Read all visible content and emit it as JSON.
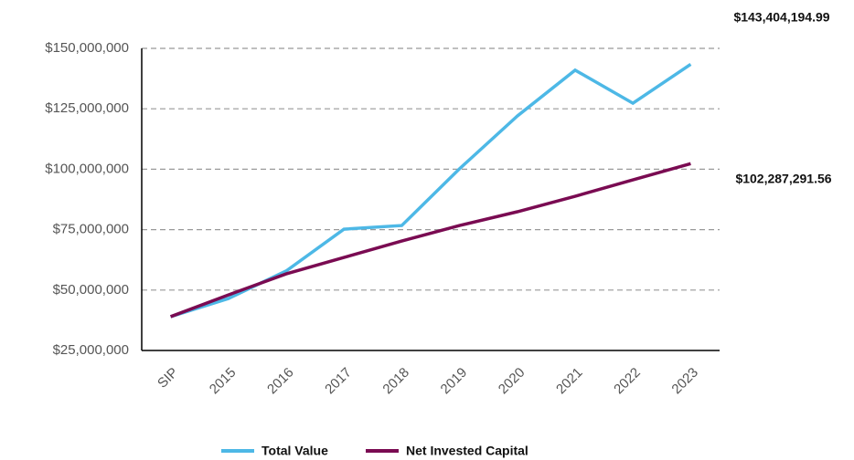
{
  "chart_data": {
    "type": "line",
    "categories": [
      "SIP",
      "2015",
      "2016",
      "2017",
      "2018",
      "2019",
      "2020",
      "2021",
      "2022",
      "2023"
    ],
    "series": [
      {
        "name": "Total Value",
        "color": "#4db8e6",
        "values": [
          39000000,
          46500000,
          57900000,
          75200000,
          76700000,
          100200000,
          122000000,
          141000000,
          127300000,
          143404194.99
        ],
        "value_labels": [
          null,
          null,
          null,
          null,
          null,
          null,
          null,
          null,
          null,
          "$143,404,194.99"
        ]
      },
      {
        "name": "Net Invested Capital",
        "color": "#7a0b52",
        "values": [
          39000000,
          48000000,
          56700000,
          63500000,
          70300000,
          76700000,
          82400000,
          88800000,
          95600000,
          102287291.56
        ],
        "value_labels": [
          null,
          null,
          null,
          null,
          null,
          null,
          null,
          null,
          null,
          "$102,287,291.56"
        ]
      }
    ],
    "ylim": [
      25000000,
      150000000
    ],
    "yticks": [
      {
        "value": 25000000,
        "label": "$25,000,000"
      },
      {
        "value": 50000000,
        "label": "$50,000,000"
      },
      {
        "value": 75000000,
        "label": "$75,000,000"
      },
      {
        "value": 100000000,
        "label": "$100,000,000"
      },
      {
        "value": 125000000,
        "label": "$125,000,000"
      },
      {
        "value": 150000000,
        "label": "$150,000,000"
      }
    ],
    "grid": true
  }
}
